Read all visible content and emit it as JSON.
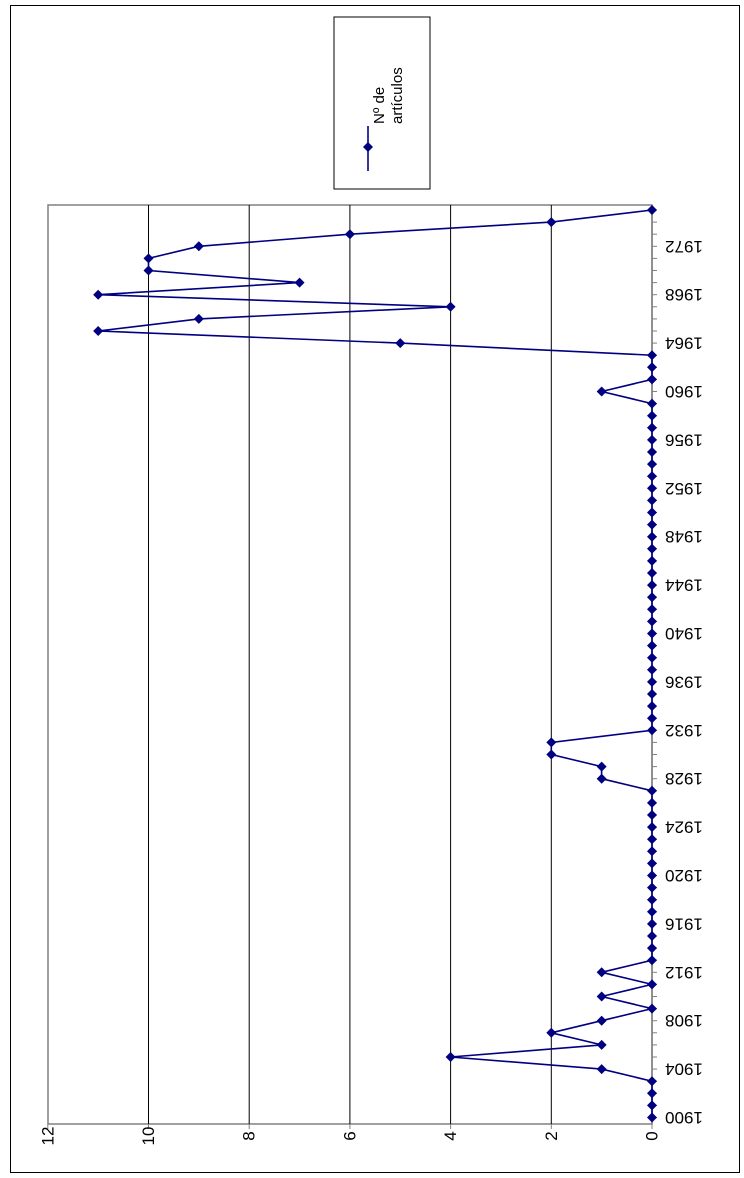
{
  "chart_data": {
    "type": "line",
    "title": "",
    "xlabel": "",
    "ylabel": "",
    "ylim": [
      0,
      12
    ],
    "y_ticks": [
      "0",
      "2",
      "4",
      "6",
      "8",
      "10",
      "12"
    ],
    "x_tick_labels": [
      "1900",
      "1904",
      "1908",
      "1912",
      "1916",
      "1920",
      "1924",
      "1928",
      "1932",
      "1936",
      "1940",
      "1944",
      "1948",
      "1952",
      "1956",
      "1960",
      "1964",
      "1968",
      "1972"
    ],
    "grid": "major horizontal gridlines",
    "legend_placement": "top-right",
    "orientation": "rotated 180 degrees",
    "x": [
      1900,
      1901,
      1902,
      1903,
      1904,
      1905,
      1906,
      1907,
      1908,
      1909,
      1910,
      1911,
      1912,
      1913,
      1914,
      1915,
      1916,
      1917,
      1918,
      1919,
      1920,
      1921,
      1922,
      1923,
      1924,
      1925,
      1926,
      1927,
      1928,
      1929,
      1930,
      1931,
      1932,
      1933,
      1934,
      1935,
      1936,
      1937,
      1938,
      1939,
      1940,
      1941,
      1942,
      1943,
      1944,
      1945,
      1946,
      1947,
      1948,
      1949,
      1950,
      1951,
      1952,
      1953,
      1954,
      1955,
      1956,
      1957,
      1958,
      1959,
      1960,
      1961,
      1962,
      1963,
      1964,
      1965,
      1966,
      1967,
      1968,
      1969,
      1970,
      1971,
      1972,
      1973,
      1974,
      1975
    ],
    "series": [
      {
        "name": "Nº de artículos",
        "color": "#000080",
        "values": [
          0,
          0,
          0,
          0,
          1,
          4,
          1,
          2,
          1,
          0,
          1,
          0,
          1,
          0,
          0,
          0,
          0,
          0,
          0,
          0,
          0,
          0,
          0,
          0,
          0,
          0,
          0,
          0,
          1,
          1,
          2,
          2,
          0,
          0,
          0,
          0,
          0,
          0,
          0,
          0,
          0,
          0,
          0,
          0,
          0,
          0,
          0,
          0,
          0,
          0,
          0,
          0,
          0,
          0,
          0,
          0,
          0,
          0,
          0,
          0,
          1,
          0,
          0,
          0,
          5,
          11,
          9,
          4,
          11,
          7,
          10,
          10,
          9,
          6,
          2,
          0
        ]
      }
    ]
  },
  "legend": {
    "line1": "Nº de",
    "line2": "artículos"
  }
}
